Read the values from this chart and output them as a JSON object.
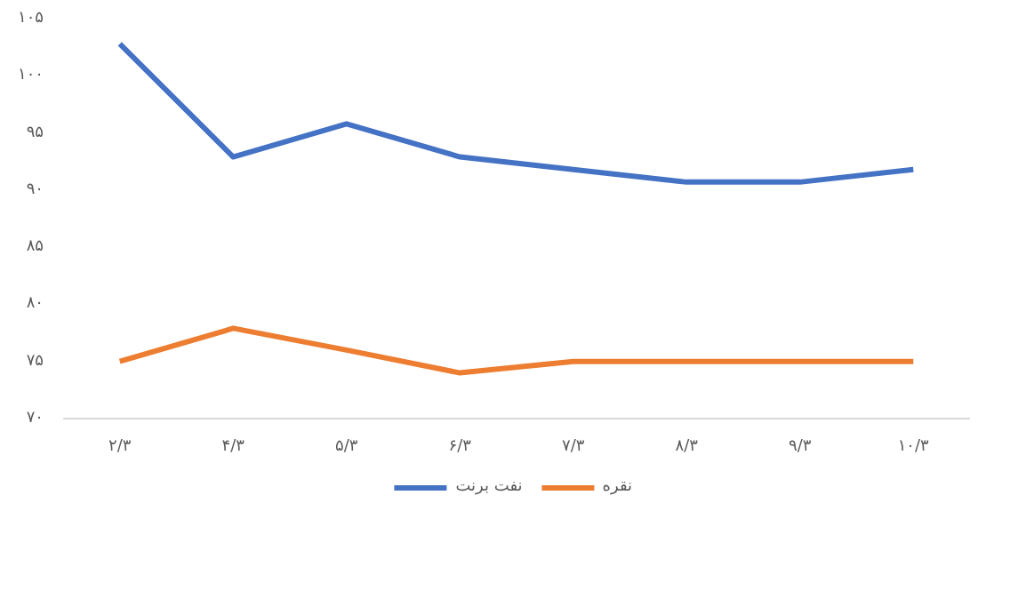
{
  "chart_data": {
    "type": "line",
    "categories": [
      "۲/۳",
      "۴/۳",
      "۵/۳",
      "۶/۳",
      "۷/۳",
      "۸/۳",
      "۹/۳",
      "۱۰/۳"
    ],
    "series": [
      {
        "name": "نفت برنت",
        "color": "#4472c4",
        "values": [
          102.8,
          92.9,
          95.8,
          92.9,
          91.8,
          90.7,
          90.7,
          91.8
        ]
      },
      {
        "name": "نقره",
        "color": "#ed7d31",
        "values": [
          75,
          77.9,
          76,
          74,
          75,
          75,
          75,
          75
        ]
      }
    ],
    "ylim": [
      70,
      105
    ],
    "yticks": [
      {
        "value": 70,
        "label": "۷۰"
      },
      {
        "value": 75,
        "label": "۷۵"
      },
      {
        "value": 80,
        "label": "۸۰"
      },
      {
        "value": 85,
        "label": "۸۵"
      },
      {
        "value": 90,
        "label": "۹۰"
      },
      {
        "value": 95,
        "label": "۹۵"
      },
      {
        "value": 100,
        "label": "۱۰۰"
      },
      {
        "value": 105,
        "label": "۱۰۵"
      }
    ],
    "grid": false,
    "legend": "bottom",
    "marker": "none",
    "line_style": "solid"
  }
}
